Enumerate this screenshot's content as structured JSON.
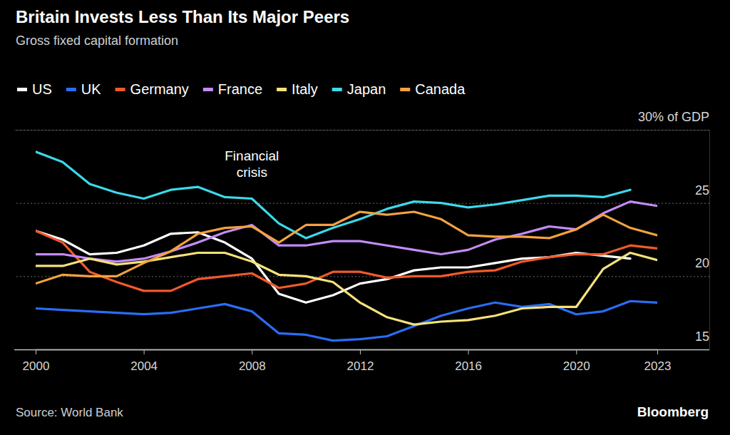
{
  "chart_data": {
    "type": "line",
    "title": "Britain Invests Less Than Its Major Peers",
    "subtitle": "Gross fixed capital formation",
    "source": "Source: World Bank",
    "credit": "Bloomberg",
    "annotations": [
      {
        "text": "Financial crisis",
        "x": 2008
      }
    ],
    "x": [
      2000,
      2001,
      2002,
      2003,
      2004,
      2005,
      2006,
      2007,
      2008,
      2009,
      2010,
      2011,
      2012,
      2013,
      2014,
      2015,
      2016,
      2017,
      2018,
      2019,
      2020,
      2021,
      2022,
      2023
    ],
    "xlim": [
      2000,
      2023
    ],
    "xticks": [
      2000,
      2004,
      2008,
      2012,
      2016,
      2020,
      2023
    ],
    "ylim": [
      15,
      30
    ],
    "yticks": [
      15,
      20,
      25,
      {
        "value": 30,
        "label": "30% of GDP"
      }
    ],
    "grid": true,
    "legend": "top",
    "series": [
      {
        "name": "US",
        "color": "#ffffff",
        "values": [
          23.1,
          22.5,
          21.5,
          21.6,
          22.1,
          22.9,
          23.0,
          22.3,
          21.2,
          18.8,
          18.2,
          18.7,
          19.5,
          19.8,
          20.4,
          20.6,
          20.6,
          20.9,
          21.2,
          21.3,
          21.6,
          21.4,
          21.2,
          null
        ]
      },
      {
        "name": "UK",
        "color": "#2a6df4",
        "values": [
          17.8,
          17.7,
          17.6,
          17.5,
          17.4,
          17.5,
          17.8,
          18.1,
          17.6,
          16.1,
          16.0,
          15.6,
          15.7,
          15.9,
          16.6,
          17.3,
          17.8,
          18.2,
          17.9,
          18.1,
          17.4,
          17.6,
          18.3,
          18.2
        ]
      },
      {
        "name": "Germany",
        "color": "#f05a2a",
        "values": [
          23.1,
          22.3,
          20.3,
          19.6,
          19.0,
          19.0,
          19.8,
          20.0,
          20.2,
          19.2,
          19.5,
          20.3,
          20.3,
          19.9,
          20.0,
          20.0,
          20.3,
          20.4,
          21.0,
          21.3,
          21.5,
          21.5,
          22.1,
          21.9
        ]
      },
      {
        "name": "France",
        "color": "#c28cf8",
        "values": [
          21.5,
          21.5,
          21.2,
          21.0,
          21.2,
          21.7,
          22.3,
          23.0,
          23.5,
          22.1,
          22.1,
          22.4,
          22.4,
          22.1,
          21.8,
          21.5,
          21.8,
          22.5,
          22.9,
          23.4,
          23.2,
          24.3,
          25.1,
          24.8
        ]
      },
      {
        "name": "Italy",
        "color": "#f5e27a",
        "values": [
          20.7,
          20.7,
          21.2,
          20.8,
          21.0,
          21.3,
          21.6,
          21.6,
          21.0,
          20.1,
          20.0,
          19.6,
          18.2,
          17.2,
          16.7,
          16.9,
          17.0,
          17.3,
          17.8,
          17.9,
          17.9,
          20.5,
          21.6,
          21.1
        ]
      },
      {
        "name": "Japan",
        "color": "#3dd8ea",
        "values": [
          28.5,
          27.8,
          26.3,
          25.7,
          25.3,
          25.9,
          26.1,
          25.4,
          25.3,
          23.6,
          22.6,
          23.3,
          23.9,
          24.6,
          25.1,
          25.0,
          24.7,
          24.9,
          25.2,
          25.5,
          25.5,
          25.4,
          25.9,
          null
        ]
      },
      {
        "name": "Canada",
        "color": "#f4a23e",
        "values": [
          19.5,
          20.1,
          20.0,
          20.0,
          20.9,
          21.7,
          22.9,
          23.3,
          23.4,
          22.3,
          23.5,
          23.5,
          24.4,
          24.2,
          24.4,
          23.9,
          22.8,
          22.7,
          22.7,
          22.6,
          23.2,
          24.2,
          23.3,
          22.8
        ]
      }
    ]
  }
}
